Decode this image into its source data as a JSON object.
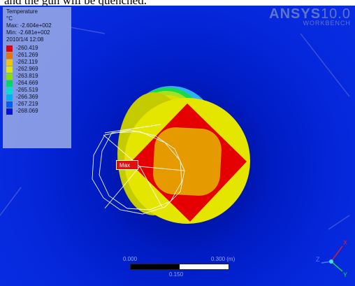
{
  "caption_fragment": "and the gun will be quenched.",
  "legend": {
    "title": "Temperature",
    "unit": "°C",
    "max": "Max: -2.604e+002",
    "min": "Min: -2.681e+002",
    "date": "2010/1/4 12:08",
    "entries": [
      {
        "value": "-260.419",
        "color": "#e80000"
      },
      {
        "value": "-261.269",
        "color": "#f07800"
      },
      {
        "value": "-262.119",
        "color": "#f8d000"
      },
      {
        "value": "-262.969",
        "color": "#e8f000"
      },
      {
        "value": "-263.819",
        "color": "#8ce800"
      },
      {
        "value": "-264.669",
        "color": "#00e060"
      },
      {
        "value": "-265.519",
        "color": "#00e8d0"
      },
      {
        "value": "-266.369",
        "color": "#00b8f0"
      },
      {
        "value": "-267.219",
        "color": "#0060f0"
      },
      {
        "value": "-268.069",
        "color": "#0010d8"
      }
    ]
  },
  "logo": {
    "brand": "ANSYS",
    "version": "10.0",
    "sub": "WORKBENCH"
  },
  "probe": {
    "label": "Max"
  },
  "scale": {
    "left": "0.000",
    "right": "0.300 (m)",
    "mid": "0.150"
  },
  "triad": {
    "x": "X",
    "y": "Y",
    "z": "Z"
  }
}
